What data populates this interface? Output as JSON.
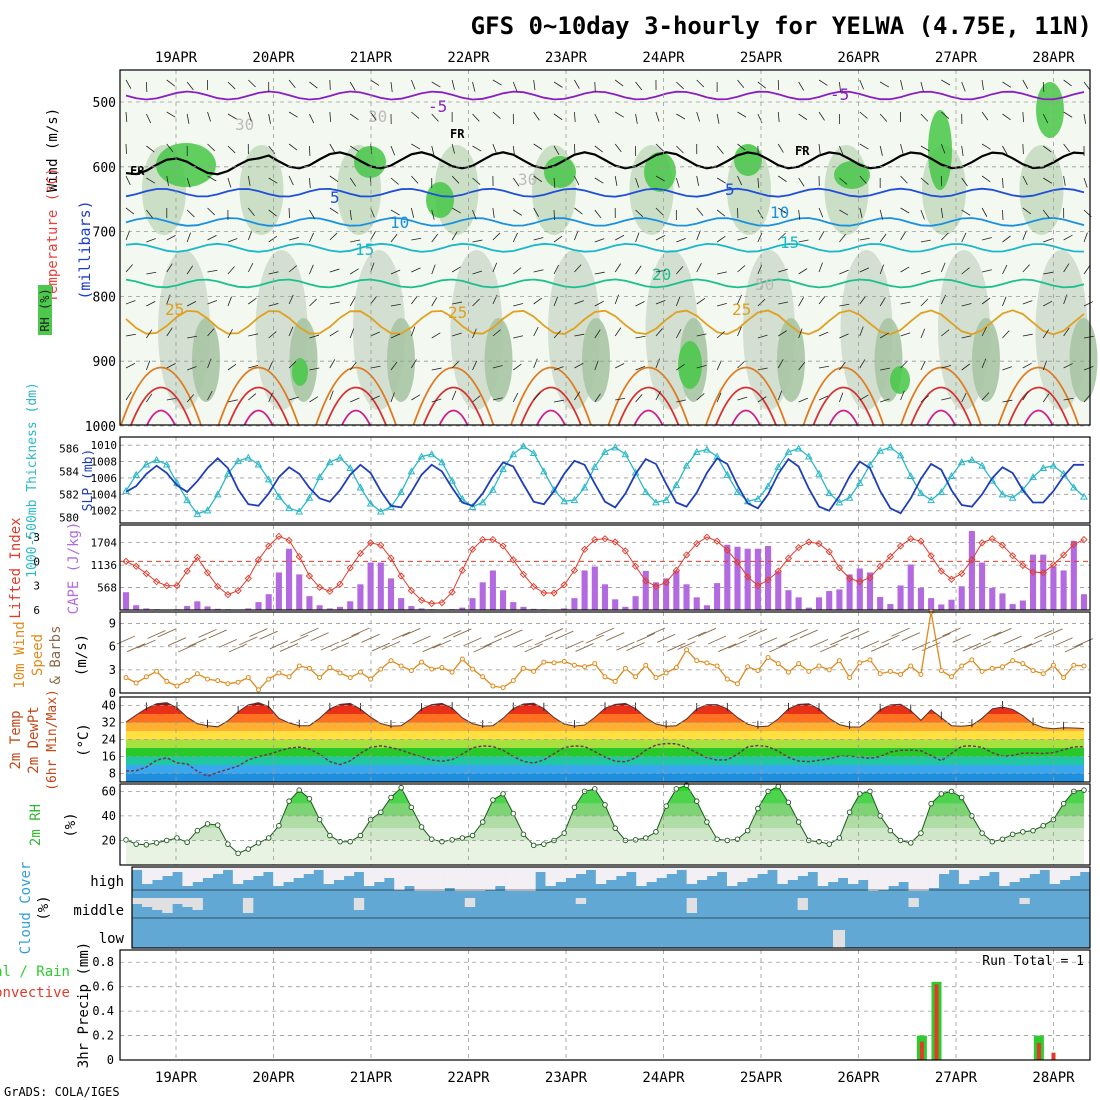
{
  "page": {
    "title": "GFS 0~10day 3-hourly for YELWA (4.75E, 11N)",
    "credit": "GrADS: COLA/IGES"
  },
  "colors": {
    "wind_label": "#000000",
    "temperature_label": "#e8403a",
    "rh_label": "#2ecc2e",
    "pressure_label": "#1a3ec8",
    "thickness_label": "#2bb8c8",
    "slp_label": "#1f3fb8",
    "lifted_index_label": "#e23a2a",
    "cape_label": "#b36ae0",
    "wind10m_label": "#e08a1a",
    "temp2m_label": "#c24a1a",
    "rh2m_label": "#34b834",
    "cloud_label": "#2f9fd8",
    "precip_total_label": "#2ecc2e",
    "precip_conv_label": "#e23a2a"
  },
  "chart_data": [
    {
      "type": "heatmap",
      "name": "upper-air cross section",
      "axis_labels": [
        "Wind (m/s)",
        "Temperature (°C)",
        "RH (%)",
        "millibars"
      ],
      "ylabel": "(millibars)",
      "yticks": [
        500,
        600,
        700,
        800,
        900,
        1000
      ],
      "ylim": [
        1000,
        450
      ],
      "x_dates": [
        "19APR",
        "20APR",
        "21APR",
        "22APR",
        "23APR",
        "24APR",
        "25APR",
        "26APR",
        "27APR",
        "28APR"
      ],
      "contour_labels": [
        "-5",
        "-5",
        "FR",
        "FR",
        "FR",
        "5",
        "5",
        "10",
        "10",
        "15",
        "15",
        "20",
        "25",
        "25",
        "25",
        "30",
        "30",
        "30",
        "50"
      ],
      "isotherms": [
        {
          "label": "-5",
          "color": "#8a1ec0",
          "level_mb": 490
        },
        {
          "label": "FR",
          "color": "#000000",
          "level_mb": 590
        },
        {
          "label": "5",
          "color": "#1f4fd8",
          "level_mb": 640
        },
        {
          "label": "10",
          "color": "#1a90e0",
          "level_mb": 685
        },
        {
          "label": "15",
          "color": "#1ab8c8",
          "level_mb": 725
        },
        {
          "label": "20",
          "color": "#1ac090",
          "level_mb": 780
        },
        {
          "label": "25",
          "color": "#e0a020",
          "level_mb": 840
        }
      ]
    },
    {
      "type": "line",
      "name": "thickness and SLP",
      "left_label": "1000-500mb Thickness (dm)",
      "right_label": "SLP (mb)",
      "left_ticks": [
        580,
        582,
        584,
        586
      ],
      "right_ticks": [
        1002,
        1004,
        1006,
        1008,
        1010
      ],
      "series": [
        {
          "name": "1000-500mb Thickness (dm)",
          "axis": "left",
          "color": "#2bb8c8",
          "values": [
            582.3,
            583.7,
            584.6,
            585.0,
            584.6,
            583.0,
            581.5,
            580.3,
            580.6,
            582.0,
            583.8,
            584.9,
            585.2,
            584.6,
            583.3,
            581.8,
            580.8,
            580.5,
            581.7,
            583.5,
            584.8,
            585.2,
            584.3,
            582.6,
            581.2,
            580.5,
            580.9,
            582.2,
            584.0,
            585.3,
            585.5,
            584.8,
            583.2,
            581.6,
            580.9,
            581.3,
            582.4,
            584.2,
            585.5,
            586.2,
            585.6,
            584.0,
            582.4,
            581.4,
            581.5,
            582.6,
            584.4,
            585.7,
            586.1,
            585.5,
            583.9,
            582.2,
            581.3,
            581.5,
            582.8,
            584.5,
            585.7,
            585.9,
            585.3,
            583.7,
            582.2,
            581.4,
            581.6,
            582.7,
            584.4,
            585.7,
            586.0,
            585.3,
            583.8,
            582.1,
            581.3,
            581.7,
            583.0,
            584.6,
            585.8,
            586.1,
            585.4,
            583.6,
            582.1,
            581.5,
            582.2,
            583.6,
            584.8,
            585.0,
            584.5,
            583.2,
            582.0,
            581.7,
            582.4,
            583.5,
            584.3,
            584.5,
            583.8,
            582.6,
            581.8
          ]
        },
        {
          "name": "SLP (mb)",
          "axis": "right",
          "color": "#1f3fb8",
          "values": [
            1004.3,
            1005.0,
            1006.5,
            1007.5,
            1006.6,
            1005.1,
            1004.3,
            1005.6,
            1007.2,
            1008.4,
            1007.2,
            1004.6,
            1002.8,
            1002.6,
            1004.1,
            1006.1,
            1007.3,
            1006.5,
            1004.8,
            1003.5,
            1003.1,
            1004.5,
            1006.4,
            1007.6,
            1006.6,
            1004.4,
            1002.6,
            1002.4,
            1004.3,
            1006.4,
            1007.6,
            1006.8,
            1004.8,
            1003.0,
            1002.6,
            1004.1,
            1006.2,
            1007.9,
            1007.4,
            1005.2,
            1003.1,
            1002.8,
            1004.4,
            1006.5,
            1008.1,
            1007.6,
            1005.3,
            1003.1,
            1002.4,
            1004.1,
            1006.5,
            1008.3,
            1007.7,
            1005.3,
            1003.0,
            1002.5,
            1004.2,
            1006.6,
            1008.4,
            1007.7,
            1005.1,
            1002.9,
            1002.3,
            1004.0,
            1006.5,
            1008.3,
            1007.4,
            1004.7,
            1002.5,
            1002.0,
            1003.8,
            1006.2,
            1008.0,
            1007.2,
            1004.4,
            1002.3,
            1001.7,
            1003.5,
            1005.9,
            1007.7,
            1007.0,
            1004.5,
            1002.7,
            1002.5,
            1004.0,
            1006.0,
            1007.3,
            1006.6,
            1004.5,
            1003.0,
            1003.0,
            1004.4,
            1006.2,
            1007.6,
            1007.6
          ]
        }
      ]
    },
    {
      "type": "bar",
      "name": "lifted index and CAPE",
      "left_label": "Lifted Index",
      "right_label": "CAPE (J/kg)",
      "left_ticks": [
        -3,
        0,
        3,
        6
      ],
      "right_ticks": [
        568,
        1136,
        1704
      ],
      "series": [
        {
          "name": "CAPE (J/kg)",
          "kind": "bar",
          "color": "#b36ae0",
          "values": [
            450,
            120,
            40,
            20,
            10,
            20,
            100,
            220,
            90,
            30,
            20,
            10,
            40,
            200,
            400,
            950,
            1550,
            900,
            350,
            120,
            40,
            80,
            220,
            650,
            1200,
            1200,
            800,
            300,
            100,
            40,
            20,
            10,
            20,
            60,
            300,
            700,
            1000,
            500,
            200,
            80,
            30,
            20,
            10,
            40,
            300,
            1000,
            1100,
            650,
            270,
            80,
            350,
            990,
            700,
            800,
            1000,
            650,
            320,
            120,
            680,
            1650,
            1600,
            1550,
            1550,
            1620,
            980,
            500,
            320,
            60,
            320,
            480,
            520,
            900,
            1050,
            950,
            330,
            150,
            620,
            1150,
            560,
            300,
            140,
            260,
            600,
            2000,
            1200,
            560,
            420,
            150,
            240,
            1400,
            1400,
            1100,
            1000,
            1750,
            400
          ]
        },
        {
          "name": "Lifted Index",
          "kind": "line",
          "color": "#e23a2a",
          "values": [
            0,
            0.6,
            1.5,
            2.5,
            3.0,
            3.0,
            1.2,
            -0.5,
            1.4,
            3.1,
            4.1,
            3.6,
            2.1,
            -0.2,
            -1.9,
            -3.1,
            -2.6,
            -0.6,
            1.8,
            3.2,
            3.7,
            2.8,
            0.8,
            -1.0,
            -2.3,
            -2.0,
            -0.4,
            1.8,
            3.6,
            4.8,
            5.2,
            5.1,
            3.8,
            1.1,
            -1.5,
            -2.7,
            -2.7,
            -1.9,
            -0.2,
            1.6,
            3.1,
            3.9,
            3.9,
            2.9,
            1.1,
            -1.5,
            -2.7,
            -2.8,
            -2.4,
            -1.3,
            0.6,
            2.4,
            3.1,
            2.6,
            1.1,
            -0.8,
            -2.2,
            -3.0,
            -2.5,
            -1.4,
            0.1,
            1.9,
            3.0,
            2.3,
            1.2,
            -0.4,
            -1.7,
            -2.4,
            -2.2,
            -1.2,
            0.8,
            2.1,
            2.5,
            2.0,
            0.6,
            -0.6,
            -1.9,
            -2.8,
            -2.5,
            -0.7,
            1.2,
            2.2,
            1.5,
            -0.2,
            -2.3,
            -2.8,
            -2.0,
            -0.7,
            0.5,
            1.3,
            1.4,
            0.4,
            -0.8,
            -2.1,
            -2.7
          ]
        }
      ]
    },
    {
      "type": "line",
      "name": "10m wind",
      "ylabel": "10m Wind Speed & Barbs (m/s)",
      "yticks": [
        0,
        3,
        6,
        9
      ],
      "ylim": [
        0,
        10.5
      ],
      "series": [
        {
          "name": "10m Wind Speed",
          "color": "#e08a1a",
          "values": [
            2.0,
            1.3,
            2.1,
            2.8,
            1.5,
            0.9,
            1.6,
            2.5,
            1.8,
            1.6,
            1.2,
            1.4,
            2.0,
            0.4,
            1.8,
            2.6,
            2.1,
            3.5,
            3.2,
            2.0,
            3.3,
            2.6,
            2.0,
            2.7,
            1.8,
            3.1,
            4.2,
            3.5,
            2.9,
            4.0,
            3.1,
            3.3,
            2.7,
            4.4,
            3.1,
            2.1,
            0.9,
            0.7,
            1.6,
            3.2,
            2.8,
            4.0,
            3.9,
            4.1,
            3.6,
            3.4,
            3.8,
            2.1,
            1.5,
            3.2,
            2.1,
            3.6,
            2.0,
            2.6,
            3.3,
            5.6,
            4.2,
            3.9,
            3.5,
            1.8,
            1.2,
            3.4,
            2.9,
            4.6,
            3.8,
            2.7,
            3.8,
            2.8,
            3.5,
            3.0,
            4.2,
            2.0,
            3.9,
            4.3,
            2.5,
            2.8,
            2.4,
            3.5,
            2.4,
            10.5,
            2.9,
            2.1,
            3.5,
            4.3,
            2.8,
            3.2,
            3.4,
            4.2,
            3.8,
            2.9,
            2.5,
            3.6,
            2.0,
            3.6,
            3.5
          ]
        }
      ]
    },
    {
      "type": "area",
      "name": "2m temperature and dew point",
      "ylabel": "2m Temp / 2m DewPt (6hr Min/Max) (°C)",
      "yticks": [
        8,
        16,
        24,
        32,
        40
      ],
      "ylim": [
        4,
        44
      ],
      "series": [
        {
          "name": "2m Temp",
          "color": "#b8241a",
          "values": [
            32.2,
            35.5,
            38.6,
            40.8,
            41.3,
            38.9,
            34.5,
            31.5,
            30.5,
            30.0,
            32.8,
            37.0,
            40.3,
            41.3,
            39.5,
            34.0,
            31.8,
            30.5,
            30.5,
            34.0,
            38.4,
            40.5,
            41.0,
            38.3,
            34.5,
            31.5,
            30.3,
            30.5,
            33.8,
            38.3,
            40.4,
            41.0,
            38.8,
            34.2,
            31.5,
            30.3,
            30.5,
            34.0,
            38.6,
            40.7,
            41.1,
            38.5,
            34.3,
            31.3,
            30.3,
            30.8,
            34.4,
            38.7,
            40.5,
            41.0,
            38.6,
            34.3,
            31.3,
            30.2,
            30.5,
            33.6,
            38.3,
            40.4,
            40.4,
            38.4,
            34.3,
            31.2,
            30.0,
            30.3,
            33.7,
            38.4,
            40.5,
            40.8,
            38.3,
            34.0,
            31.0,
            29.9,
            29.9,
            33.4,
            38.0,
            40.3,
            40.6,
            37.6,
            33.0,
            38.0,
            34.3,
            30.5,
            30.2,
            30.7,
            34.0,
            38.4,
            39.3,
            38.1,
            35.2,
            31.5,
            29.6,
            29.1,
            29.5,
            29.4,
            29.2
          ]
        },
        {
          "name": "2m DewPt",
          "color": "#6b3a50",
          "values": [
            9.2,
            9.3,
            11.0,
            14.3,
            15.4,
            13.0,
            12.5,
            9.1,
            6.7,
            8.5,
            10.0,
            11.5,
            14.4,
            16.0,
            17.0,
            18.6,
            19.9,
            20.4,
            19.5,
            17.1,
            13.6,
            12.2,
            14.0,
            17.5,
            20.3,
            21.0,
            20.2,
            19.0,
            17.3,
            15.8,
            14.3,
            13.8,
            14.5,
            17.2,
            20.1,
            21.0,
            20.7,
            18.9,
            16.0,
            13.7,
            12.9,
            14.4,
            17.3,
            20.2,
            21.0,
            20.7,
            18.3,
            15.7,
            13.8,
            13.5,
            15.4,
            19.0,
            21.4,
            22.1,
            22.0,
            20.3,
            17.8,
            15.5,
            14.3,
            14.5,
            17.1,
            20.5,
            21.2,
            20.6,
            18.5,
            15.6,
            13.9,
            13.6,
            14.2,
            15.0,
            16.2,
            16.2,
            15.7,
            15.1,
            16.0,
            18.1,
            18.9,
            19.0,
            18.7,
            16.4,
            14.0,
            17.5,
            20.8,
            21.0,
            20.3,
            17.8,
            16.1,
            16.5,
            17.6,
            17.6,
            17.4,
            17.8,
            19.2,
            20.5,
            20.6
          ]
        }
      ]
    },
    {
      "type": "area",
      "name": "2m relative humidity",
      "ylabel": "2m RH (%)",
      "yticks": [
        20,
        40,
        60
      ],
      "ylim": [
        0,
        66
      ],
      "series": [
        {
          "name": "2m RH",
          "color": "#34b834",
          "values": [
            20.5,
            17.0,
            16.5,
            18.0,
            20.0,
            22.0,
            18.5,
            28.0,
            33.5,
            32.5,
            17.0,
            9.5,
            13.0,
            18.0,
            22.0,
            32.0,
            52.0,
            61.0,
            54.0,
            37.0,
            24.0,
            19.0,
            19.0,
            24.0,
            37.0,
            43.0,
            55.0,
            63.0,
            47.0,
            31.0,
            21.0,
            19.0,
            20.5,
            22.0,
            24.0,
            35.0,
            53.0,
            58.0,
            42.0,
            25.0,
            16.0,
            17.0,
            20.0,
            26.0,
            47.0,
            60.0,
            62.0,
            49.0,
            30.0,
            20.0,
            20.5,
            22.0,
            27.0,
            48.0,
            62.0,
            65.0,
            52.0,
            35.0,
            21.0,
            20.0,
            21.0,
            28.0,
            46.0,
            60.0,
            64.0,
            51.0,
            35.0,
            20.0,
            19.0,
            17.0,
            22.0,
            43.0,
            58.0,
            60.0,
            40.0,
            28.0,
            20.0,
            18.0,
            26.0,
            50.0,
            58.0,
            60.0,
            55.0,
            40.0,
            26.0,
            19.0,
            21.0,
            25.0,
            27.0,
            28.0,
            32.0,
            37.0,
            50.0,
            60.0,
            61.0
          ]
        }
      ]
    },
    {
      "type": "heatmap",
      "name": "cloud cover",
      "ylabel": "Cloud Cover (%)",
      "rows": [
        "high",
        "middle",
        "low"
      ]
    },
    {
      "type": "bar",
      "name": "3hr precipitation",
      "ylabel": "3hr Precip (mm)",
      "legend": [
        "Total / Rain",
        "Convective"
      ],
      "annotation": "Run Total = 1",
      "yticks": [
        0,
        0.2,
        0.4,
        0.6,
        0.8
      ],
      "ylim": [
        0,
        0.9
      ],
      "bars": [
        {
          "date_index": 7.65,
          "total": 0.2,
          "convective": 0.15
        },
        {
          "date_index": 7.8,
          "total": 0.64,
          "convective": 0.62
        },
        {
          "date_index": 8.85,
          "total": 0.2,
          "convective": 0.14
        },
        {
          "date_index": 9.0,
          "total": 0.0,
          "convective": 0.06
        }
      ],
      "x_dates": [
        "19APR",
        "20APR",
        "21APR",
        "22APR",
        "23APR",
        "24APR",
        "25APR",
        "26APR",
        "27APR",
        "28APR"
      ]
    }
  ]
}
